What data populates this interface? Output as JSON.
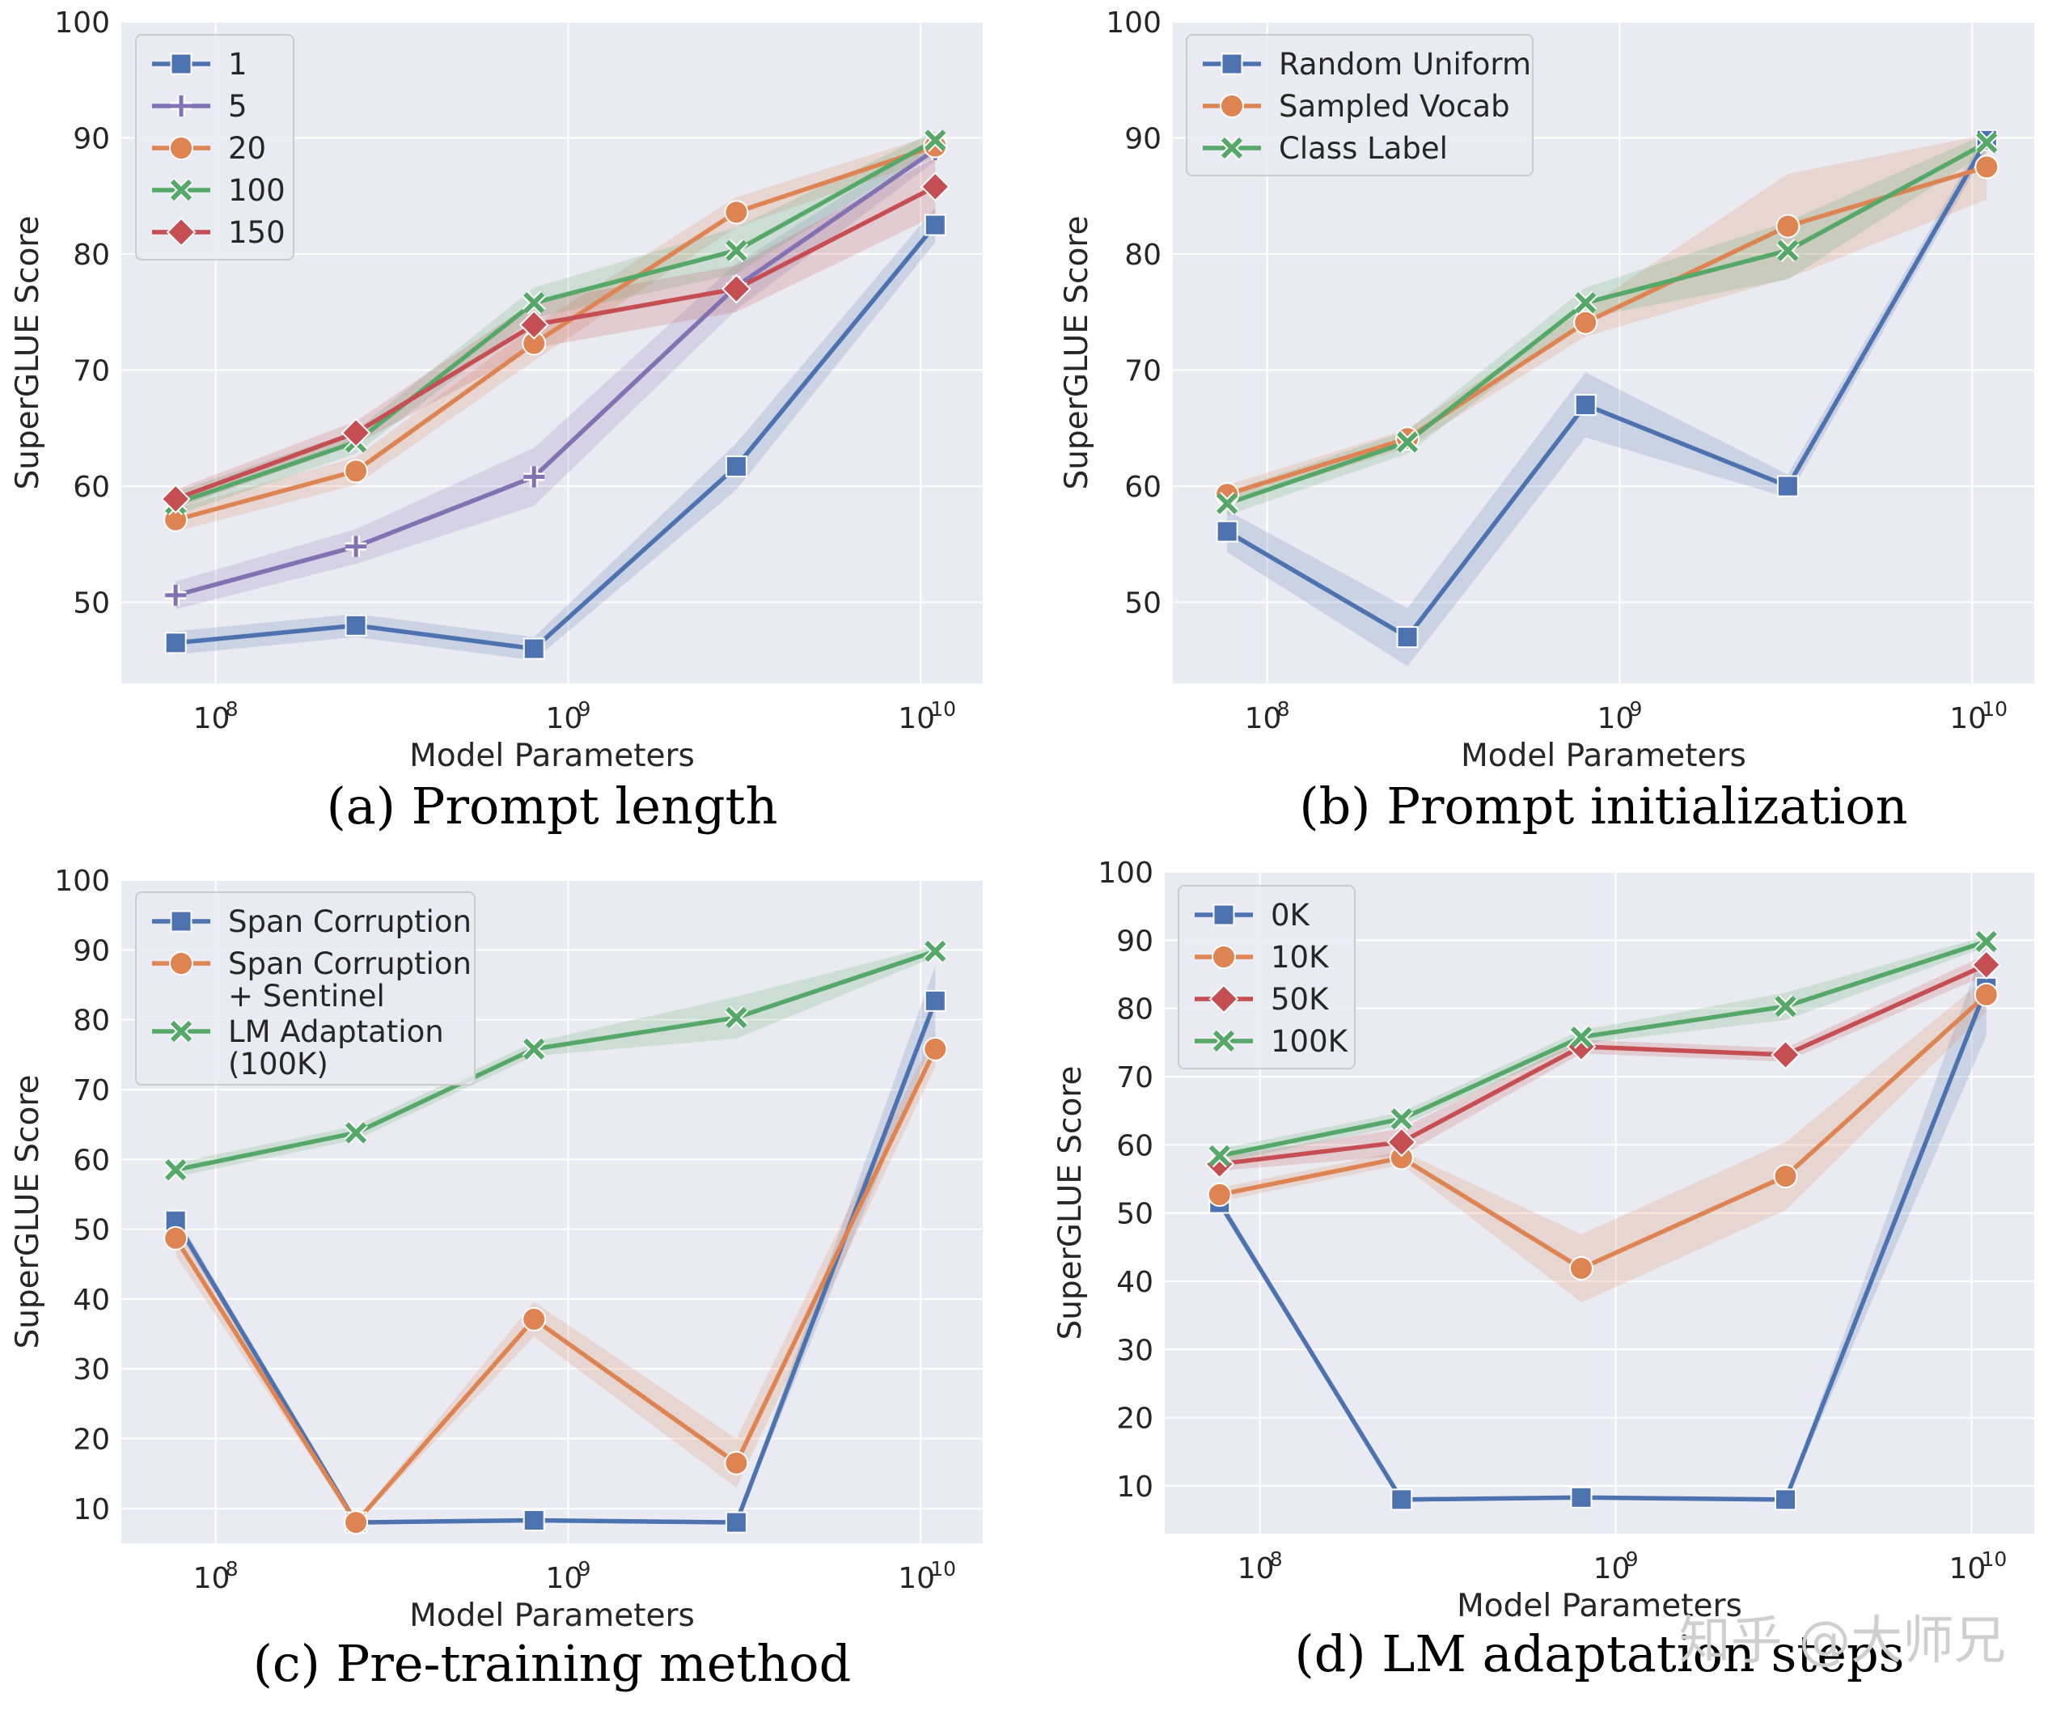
{
  "figure": {
    "watermark": "知乎 @大师兄"
  },
  "colors": {
    "blue": "#4c72b0",
    "orange": "#dd8452",
    "green": "#55a868",
    "red": "#c44e52",
    "purple": "#8172b3",
    "panel_bg": "#eaeaf2",
    "grid": "#ffffff",
    "text": "#262626"
  },
  "chart_data": [
    {
      "type": "line",
      "caption": "(a) Prompt length",
      "xlabel": "Model Parameters",
      "ylabel": "SuperGLUE Score",
      "xscale": "log",
      "xlim": [
        54000000,
        15000000000
      ],
      "ylim": [
        43,
        100
      ],
      "yticks": [
        50,
        60,
        70,
        80,
        90,
        100
      ],
      "xticks": [
        {
          "value": 100000000,
          "base": "10",
          "exp": "8"
        },
        {
          "value": 1000000000,
          "base": "10",
          "exp": "9"
        },
        {
          "value": 10000000000,
          "base": "10",
          "exp": "10"
        }
      ],
      "x": [
        77000000,
        250000000,
        800000000,
        3000000000,
        11000000000
      ],
      "legend_position": "top-left",
      "series": [
        {
          "name": "1",
          "marker": "square",
          "color": "#4c72b0",
          "values": [
            46.5,
            48.0,
            46.0,
            61.7,
            82.5
          ],
          "band": [
            1.0,
            1.0,
            1.0,
            2.0,
            1.5
          ]
        },
        {
          "name": "5",
          "marker": "plus",
          "color": "#8172b3",
          "values": [
            50.6,
            54.8,
            60.8,
            77.2,
            89.0
          ],
          "band": [
            1.2,
            1.5,
            2.5,
            2.0,
            1.0
          ]
        },
        {
          "name": "20",
          "marker": "circle",
          "color": "#dd8452",
          "values": [
            57.1,
            61.3,
            72.3,
            83.6,
            89.3
          ],
          "band": [
            1.0,
            1.2,
            1.5,
            1.3,
            1.0
          ]
        },
        {
          "name": "100",
          "marker": "x",
          "color": "#55a868",
          "values": [
            58.5,
            63.8,
            75.8,
            80.3,
            89.8
          ],
          "band": [
            1.0,
            1.0,
            1.3,
            2.0,
            0.8
          ]
        },
        {
          "name": "150",
          "marker": "diamond",
          "color": "#c44e52",
          "values": [
            58.9,
            64.6,
            73.9,
            77.0,
            85.8
          ],
          "band": [
            0.8,
            1.0,
            2.0,
            2.0,
            2.5
          ]
        }
      ]
    },
    {
      "type": "line",
      "caption": "(b) Prompt initialization",
      "xlabel": "Model Parameters",
      "ylabel": "SuperGLUE Score",
      "xscale": "log",
      "xlim": [
        54000000,
        15000000000
      ],
      "ylim": [
        43,
        100
      ],
      "yticks": [
        50,
        60,
        70,
        80,
        90,
        100
      ],
      "xticks": [
        {
          "value": 100000000,
          "base": "10",
          "exp": "8"
        },
        {
          "value": 1000000000,
          "base": "10",
          "exp": "9"
        },
        {
          "value": 10000000000,
          "base": "10",
          "exp": "10"
        }
      ],
      "x": [
        77000000,
        250000000,
        800000000,
        3000000000,
        11000000000
      ],
      "legend_position": "top-left",
      "series": [
        {
          "name": "Random Uniform",
          "marker": "square",
          "color": "#4c72b0",
          "values": [
            56.1,
            47.0,
            67.0,
            60.0,
            89.8
          ],
          "band": [
            1.8,
            2.5,
            2.8,
            1.0,
            0.8
          ]
        },
        {
          "name": "Sampled Vocab",
          "marker": "circle",
          "color": "#dd8452",
          "values": [
            59.3,
            64.1,
            74.1,
            82.4,
            87.5
          ],
          "band": [
            0.8,
            0.8,
            1.2,
            4.5,
            2.8
          ]
        },
        {
          "name": "Class Label",
          "marker": "x",
          "color": "#55a868",
          "values": [
            58.5,
            63.8,
            75.8,
            80.3,
            89.6
          ],
          "band": [
            1.0,
            1.0,
            1.3,
            2.5,
            0.8
          ]
        }
      ]
    },
    {
      "type": "line",
      "caption": "(c) Pre-training method",
      "xlabel": "Model Parameters",
      "ylabel": "SuperGLUE Score",
      "xscale": "log",
      "xlim": [
        54000000,
        15000000000
      ],
      "ylim": [
        5,
        100
      ],
      "yticks": [
        10,
        20,
        30,
        40,
        50,
        60,
        70,
        80,
        90,
        100
      ],
      "xticks": [
        {
          "value": 100000000,
          "base": "10",
          "exp": "8"
        },
        {
          "value": 1000000000,
          "base": "10",
          "exp": "9"
        },
        {
          "value": 10000000000,
          "base": "10",
          "exp": "10"
        }
      ],
      "x": [
        77000000,
        250000000,
        800000000,
        3000000000,
        11000000000
      ],
      "legend_position": "top-left",
      "series": [
        {
          "name": "Span Corruption",
          "marker": "square",
          "color": "#4c72b0",
          "values": [
            51.2,
            8.0,
            8.3,
            8.0,
            82.7
          ],
          "band": [
            1.0,
            0.3,
            0.3,
            0.3,
            5.0
          ]
        },
        {
          "name": "Span Corruption\n+ Sentinel",
          "marker": "circle",
          "color": "#dd8452",
          "values": [
            48.7,
            8.0,
            37.1,
            16.5,
            75.8
          ],
          "band": [
            2.5,
            0.3,
            2.5,
            3.5,
            2.5
          ]
        },
        {
          "name": "LM Adaptation\n(100K)",
          "marker": "x",
          "color": "#55a868",
          "values": [
            58.5,
            63.8,
            75.8,
            80.3,
            89.8
          ],
          "band": [
            1.0,
            1.0,
            1.0,
            3.0,
            0.8
          ]
        }
      ]
    },
    {
      "type": "line",
      "caption": "(d) LM adaptation steps",
      "xlabel": "Model Parameters",
      "ylabel": "SuperGLUE Score",
      "xscale": "log",
      "xlim": [
        54000000,
        15000000000
      ],
      "ylim": [
        3,
        100
      ],
      "yticks": [
        10,
        20,
        30,
        40,
        50,
        60,
        70,
        80,
        90,
        100
      ],
      "xticks": [
        {
          "value": 100000000,
          "base": "10",
          "exp": "8"
        },
        {
          "value": 1000000000,
          "base": "10",
          "exp": "9"
        },
        {
          "value": 10000000000,
          "base": "10",
          "exp": "10"
        }
      ],
      "x": [
        77000000,
        250000000,
        800000000,
        3000000000,
        11000000000
      ],
      "legend_position": "top-left",
      "series": [
        {
          "name": "0K",
          "marker": "square",
          "color": "#4c72b0",
          "values": [
            51.5,
            8.0,
            8.3,
            8.0,
            83.0
          ],
          "band": [
            0.8,
            0.3,
            0.3,
            0.3,
            7.0
          ]
        },
        {
          "name": "10K",
          "marker": "circle",
          "color": "#dd8452",
          "values": [
            52.7,
            58.1,
            41.9,
            55.4,
            82.0
          ],
          "band": [
            1.0,
            1.0,
            5.0,
            5.0,
            2.5
          ]
        },
        {
          "name": "50K",
          "marker": "diamond",
          "color": "#c44e52",
          "values": [
            57.2,
            60.4,
            74.4,
            73.2,
            86.4
          ],
          "band": [
            1.0,
            2.0,
            1.0,
            1.0,
            1.5
          ]
        },
        {
          "name": "100K",
          "marker": "x",
          "color": "#55a868",
          "values": [
            58.4,
            63.8,
            75.8,
            80.3,
            89.8
          ],
          "band": [
            1.0,
            1.0,
            1.0,
            2.0,
            0.8
          ]
        }
      ]
    }
  ]
}
